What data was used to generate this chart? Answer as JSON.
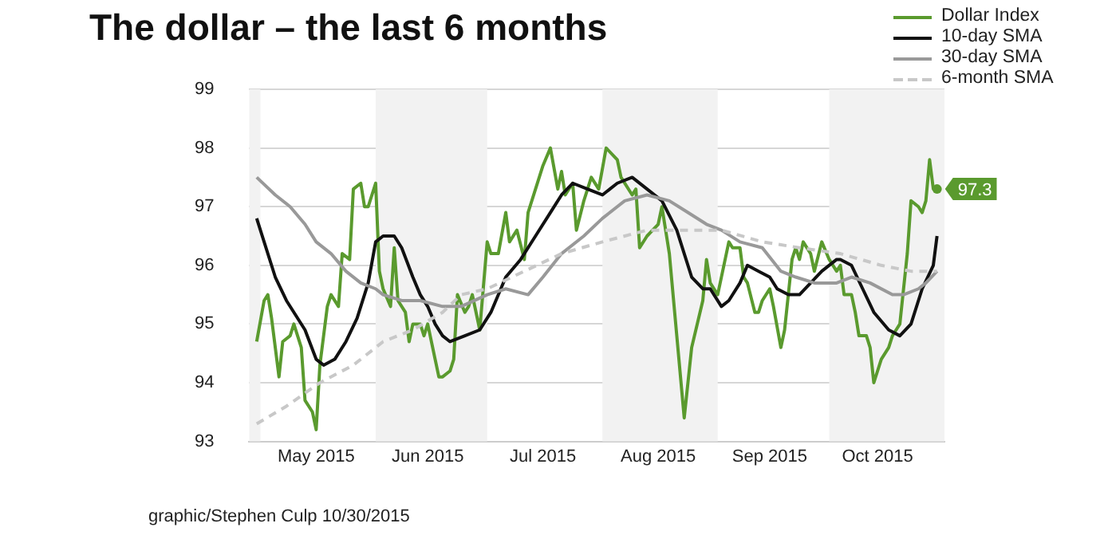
{
  "chart_data": {
    "type": "line",
    "title": "The dollar – the last 6 months",
    "legend": "top right",
    "grid": "y",
    "marker": "none",
    "xlim": [
      "2015-04-28",
      "2015-11-01"
    ],
    "xticks": [
      {
        "value": "2015-05-16",
        "label": "May 2015"
      },
      {
        "value": "2015-06-15",
        "label": "Jun 2015"
      },
      {
        "value": "2015-07-16",
        "label": "Jul 2015"
      },
      {
        "value": "2015-08-16",
        "label": "Aug 2015"
      },
      {
        "value": "2015-09-15",
        "label": "Sep 2015"
      },
      {
        "value": "2015-10-14",
        "label": "Oct 2015"
      }
    ],
    "ylim": [
      93,
      99
    ],
    "yticks": [
      93,
      94,
      95,
      96,
      97,
      98,
      99
    ],
    "bands": [
      {
        "axis": "x",
        "from": "2015-04-28",
        "to": "2015-05-01",
        "color": "#f2f2f2"
      },
      {
        "axis": "x",
        "from": "2015-06-01",
        "to": "2015-07-01",
        "color": "#f2f2f2"
      },
      {
        "axis": "x",
        "from": "2015-08-01",
        "to": "2015-09-01",
        "color": "#f2f2f2"
      },
      {
        "axis": "x",
        "from": "2015-10-01",
        "to": "2015-11-01",
        "color": "#f2f2f2"
      }
    ],
    "series": [
      {
        "name": "Dollar Index",
        "color": "#5a9a2e",
        "line_style": "solid",
        "x": [
          "2015-04-30",
          "2015-05-02",
          "2015-05-03",
          "2015-05-04",
          "2015-05-06",
          "2015-05-07",
          "2015-05-09",
          "2015-05-10",
          "2015-05-12",
          "2015-05-13",
          "2015-05-15",
          "2015-05-16",
          "2015-05-17",
          "2015-05-19",
          "2015-05-20",
          "2015-05-22",
          "2015-05-23",
          "2015-05-25",
          "2015-05-26",
          "2015-05-28",
          "2015-05-29",
          "2015-05-30",
          "2015-06-01",
          "2015-06-02",
          "2015-06-03",
          "2015-06-05",
          "2015-06-06",
          "2015-06-07",
          "2015-06-09",
          "2015-06-10",
          "2015-06-11",
          "2015-06-13",
          "2015-06-14",
          "2015-06-15",
          "2015-06-17",
          "2015-06-18",
          "2015-06-19",
          "2015-06-21",
          "2015-06-22",
          "2015-06-23",
          "2015-06-25",
          "2015-06-26",
          "2015-06-27",
          "2015-06-29",
          "2015-07-01",
          "2015-07-02",
          "2015-07-04",
          "2015-07-06",
          "2015-07-07",
          "2015-07-09",
          "2015-07-11",
          "2015-07-12",
          "2015-07-13",
          "2015-07-16",
          "2015-07-18",
          "2015-07-20",
          "2015-07-21",
          "2015-07-22",
          "2015-07-24",
          "2015-07-25",
          "2015-07-27",
          "2015-07-28",
          "2015-07-29",
          "2015-07-31",
          "2015-08-02",
          "2015-08-05",
          "2015-08-06",
          "2015-08-09",
          "2015-08-10",
          "2015-08-11",
          "2015-08-13",
          "2015-08-16",
          "2015-08-17",
          "2015-08-19",
          "2015-08-21",
          "2015-08-23",
          "2015-08-25",
          "2015-08-28",
          "2015-08-29",
          "2015-08-30",
          "2015-09-01",
          "2015-09-04",
          "2015-09-05",
          "2015-09-07",
          "2015-09-08",
          "2015-09-09",
          "2015-09-11",
          "2015-09-12",
          "2015-09-13",
          "2015-09-15",
          "2015-09-16",
          "2015-09-18",
          "2015-09-19",
          "2015-09-21",
          "2015-09-22",
          "2015-09-23",
          "2015-09-24",
          "2015-09-26",
          "2015-09-27",
          "2015-09-29",
          "2015-10-01",
          "2015-10-03",
          "2015-10-04",
          "2015-10-05",
          "2015-10-07",
          "2015-10-08",
          "2015-10-09",
          "2015-10-11",
          "2015-10-12",
          "2015-10-13",
          "2015-10-15",
          "2015-10-17",
          "2015-10-18",
          "2015-10-19",
          "2015-10-20",
          "2015-10-22",
          "2015-10-23",
          "2015-10-25",
          "2015-10-26",
          "2015-10-27",
          "2015-10-28",
          "2015-10-29",
          "2015-10-30"
        ],
        "values": [
          94.7,
          95.4,
          95.5,
          95.1,
          94.1,
          94.7,
          94.8,
          95.0,
          94.6,
          93.7,
          93.5,
          93.2,
          94.3,
          95.3,
          95.5,
          95.3,
          96.2,
          96.1,
          97.3,
          97.4,
          97.0,
          97.0,
          97.4,
          95.9,
          95.6,
          95.3,
          96.3,
          95.4,
          95.2,
          94.7,
          95.0,
          95.0,
          94.8,
          95.0,
          94.4,
          94.1,
          94.1,
          94.2,
          94.4,
          95.5,
          95.2,
          95.3,
          95.5,
          94.9,
          96.4,
          96.2,
          96.2,
          96.9,
          96.4,
          96.6,
          96.1,
          96.9,
          97.1,
          97.7,
          98.0,
          97.3,
          97.6,
          97.2,
          97.4,
          96.6,
          97.1,
          97.3,
          97.5,
          97.3,
          98.0,
          97.8,
          97.5,
          97.2,
          97.3,
          96.3,
          96.5,
          96.7,
          97.0,
          96.2,
          94.8,
          93.4,
          94.6,
          95.4,
          96.1,
          95.7,
          95.5,
          96.4,
          96.3,
          96.3,
          95.8,
          95.7,
          95.2,
          95.2,
          95.4,
          95.6,
          95.3,
          94.6,
          94.9,
          96.1,
          96.3,
          96.1,
          96.4,
          96.2,
          95.9,
          96.4,
          96.1,
          95.9,
          96.0,
          95.5,
          95.5,
          95.2,
          94.8,
          94.8,
          94.6,
          94.0,
          94.4,
          94.6,
          94.8,
          94.9,
          95.0,
          96.2,
          97.1,
          97.0,
          96.9,
          97.1,
          97.8,
          97.3,
          97.3
        ]
      },
      {
        "name": "10-day SMA",
        "color": "#111111",
        "line_style": "solid",
        "x": [
          "2015-04-30",
          "2015-05-02",
          "2015-05-05",
          "2015-05-08",
          "2015-05-13",
          "2015-05-16",
          "2015-05-18",
          "2015-05-21",
          "2015-05-24",
          "2015-05-27",
          "2015-05-30",
          "2015-06-01",
          "2015-06-03",
          "2015-06-06",
          "2015-06-08",
          "2015-06-11",
          "2015-06-13",
          "2015-06-15",
          "2015-06-17",
          "2015-06-19",
          "2015-06-21",
          "2015-06-25",
          "2015-06-29",
          "2015-07-02",
          "2015-07-06",
          "2015-07-10",
          "2015-07-14",
          "2015-07-18",
          "2015-07-21",
          "2015-07-24",
          "2015-07-28",
          "2015-08-01",
          "2015-08-05",
          "2015-08-09",
          "2015-08-13",
          "2015-08-17",
          "2015-08-21",
          "2015-08-23",
          "2015-08-25",
          "2015-08-28",
          "2015-08-30",
          "2015-09-02",
          "2015-09-04",
          "2015-09-07",
          "2015-09-09",
          "2015-09-12",
          "2015-09-15",
          "2015-09-17",
          "2015-09-20",
          "2015-09-23",
          "2015-09-26",
          "2015-09-29",
          "2015-10-03",
          "2015-10-04",
          "2015-10-07",
          "2015-10-10",
          "2015-10-13",
          "2015-10-17",
          "2015-10-20",
          "2015-10-23",
          "2015-10-26",
          "2015-10-29",
          "2015-10-30"
        ],
        "values": [
          96.8,
          96.4,
          95.8,
          95.4,
          94.9,
          94.4,
          94.3,
          94.4,
          94.7,
          95.1,
          95.7,
          96.4,
          96.5,
          96.5,
          96.3,
          95.8,
          95.5,
          95.3,
          95.0,
          94.8,
          94.7,
          94.8,
          94.9,
          95.2,
          95.8,
          96.1,
          96.5,
          96.9,
          97.2,
          97.4,
          97.3,
          97.2,
          97.4,
          97.5,
          97.3,
          97.1,
          96.6,
          96.2,
          95.8,
          95.6,
          95.6,
          95.3,
          95.4,
          95.7,
          96.0,
          95.9,
          95.8,
          95.6,
          95.5,
          95.5,
          95.7,
          95.9,
          96.1,
          96.1,
          96.0,
          95.6,
          95.2,
          94.9,
          94.8,
          95.0,
          95.6,
          96.0,
          96.5
        ]
      },
      {
        "name": "30-day SMA",
        "color": "#999999",
        "line_style": "solid",
        "x": [
          "2015-04-30",
          "2015-05-05",
          "2015-05-09",
          "2015-05-13",
          "2015-05-16",
          "2015-05-20",
          "2015-05-24",
          "2015-05-28",
          "2015-06-01",
          "2015-06-03",
          "2015-06-08",
          "2015-06-13",
          "2015-06-19",
          "2015-06-24",
          "2015-07-01",
          "2015-07-06",
          "2015-07-12",
          "2015-07-16",
          "2015-07-21",
          "2015-07-27",
          "2015-08-01",
          "2015-08-07",
          "2015-08-13",
          "2015-08-19",
          "2015-08-24",
          "2015-08-29",
          "2015-09-02",
          "2015-09-07",
          "2015-09-13",
          "2015-09-18",
          "2015-09-22",
          "2015-09-27",
          "2015-10-03",
          "2015-10-07",
          "2015-10-12",
          "2015-10-18",
          "2015-10-21",
          "2015-10-25",
          "2015-10-27",
          "2015-10-30"
        ],
        "values": [
          97.5,
          97.2,
          97.0,
          96.7,
          96.4,
          96.2,
          95.9,
          95.7,
          95.6,
          95.5,
          95.4,
          95.4,
          95.3,
          95.3,
          95.5,
          95.6,
          95.5,
          95.8,
          96.2,
          96.5,
          96.8,
          97.1,
          97.2,
          97.1,
          96.9,
          96.7,
          96.6,
          96.4,
          96.3,
          95.9,
          95.8,
          95.7,
          95.7,
          95.8,
          95.7,
          95.5,
          95.5,
          95.6,
          95.7,
          95.9
        ]
      },
      {
        "name": "6-month SMA",
        "color": "#c8c8c8",
        "line_style": "dashed",
        "x": [
          "2015-04-30",
          "2015-05-08",
          "2015-05-17",
          "2015-05-26",
          "2015-06-03",
          "2015-06-11",
          "2015-06-19",
          "2015-06-24",
          "2015-07-01",
          "2015-07-11",
          "2015-07-21",
          "2015-08-01",
          "2015-08-13",
          "2015-08-24",
          "2015-09-02",
          "2015-09-13",
          "2015-09-23",
          "2015-10-04",
          "2015-10-15",
          "2015-10-23",
          "2015-10-30"
        ],
        "values": [
          93.3,
          93.6,
          94.0,
          94.3,
          94.7,
          94.9,
          95.2,
          95.5,
          95.6,
          95.9,
          96.2,
          96.4,
          96.6,
          96.6,
          96.6,
          96.4,
          96.3,
          96.2,
          96.0,
          95.9,
          95.9
        ]
      }
    ],
    "annotations": [
      {
        "text": "97.3",
        "x": "2015-10-30",
        "y": 97.3
      },
      "graphic/Stephen Culp  10/30/2015"
    ]
  }
}
